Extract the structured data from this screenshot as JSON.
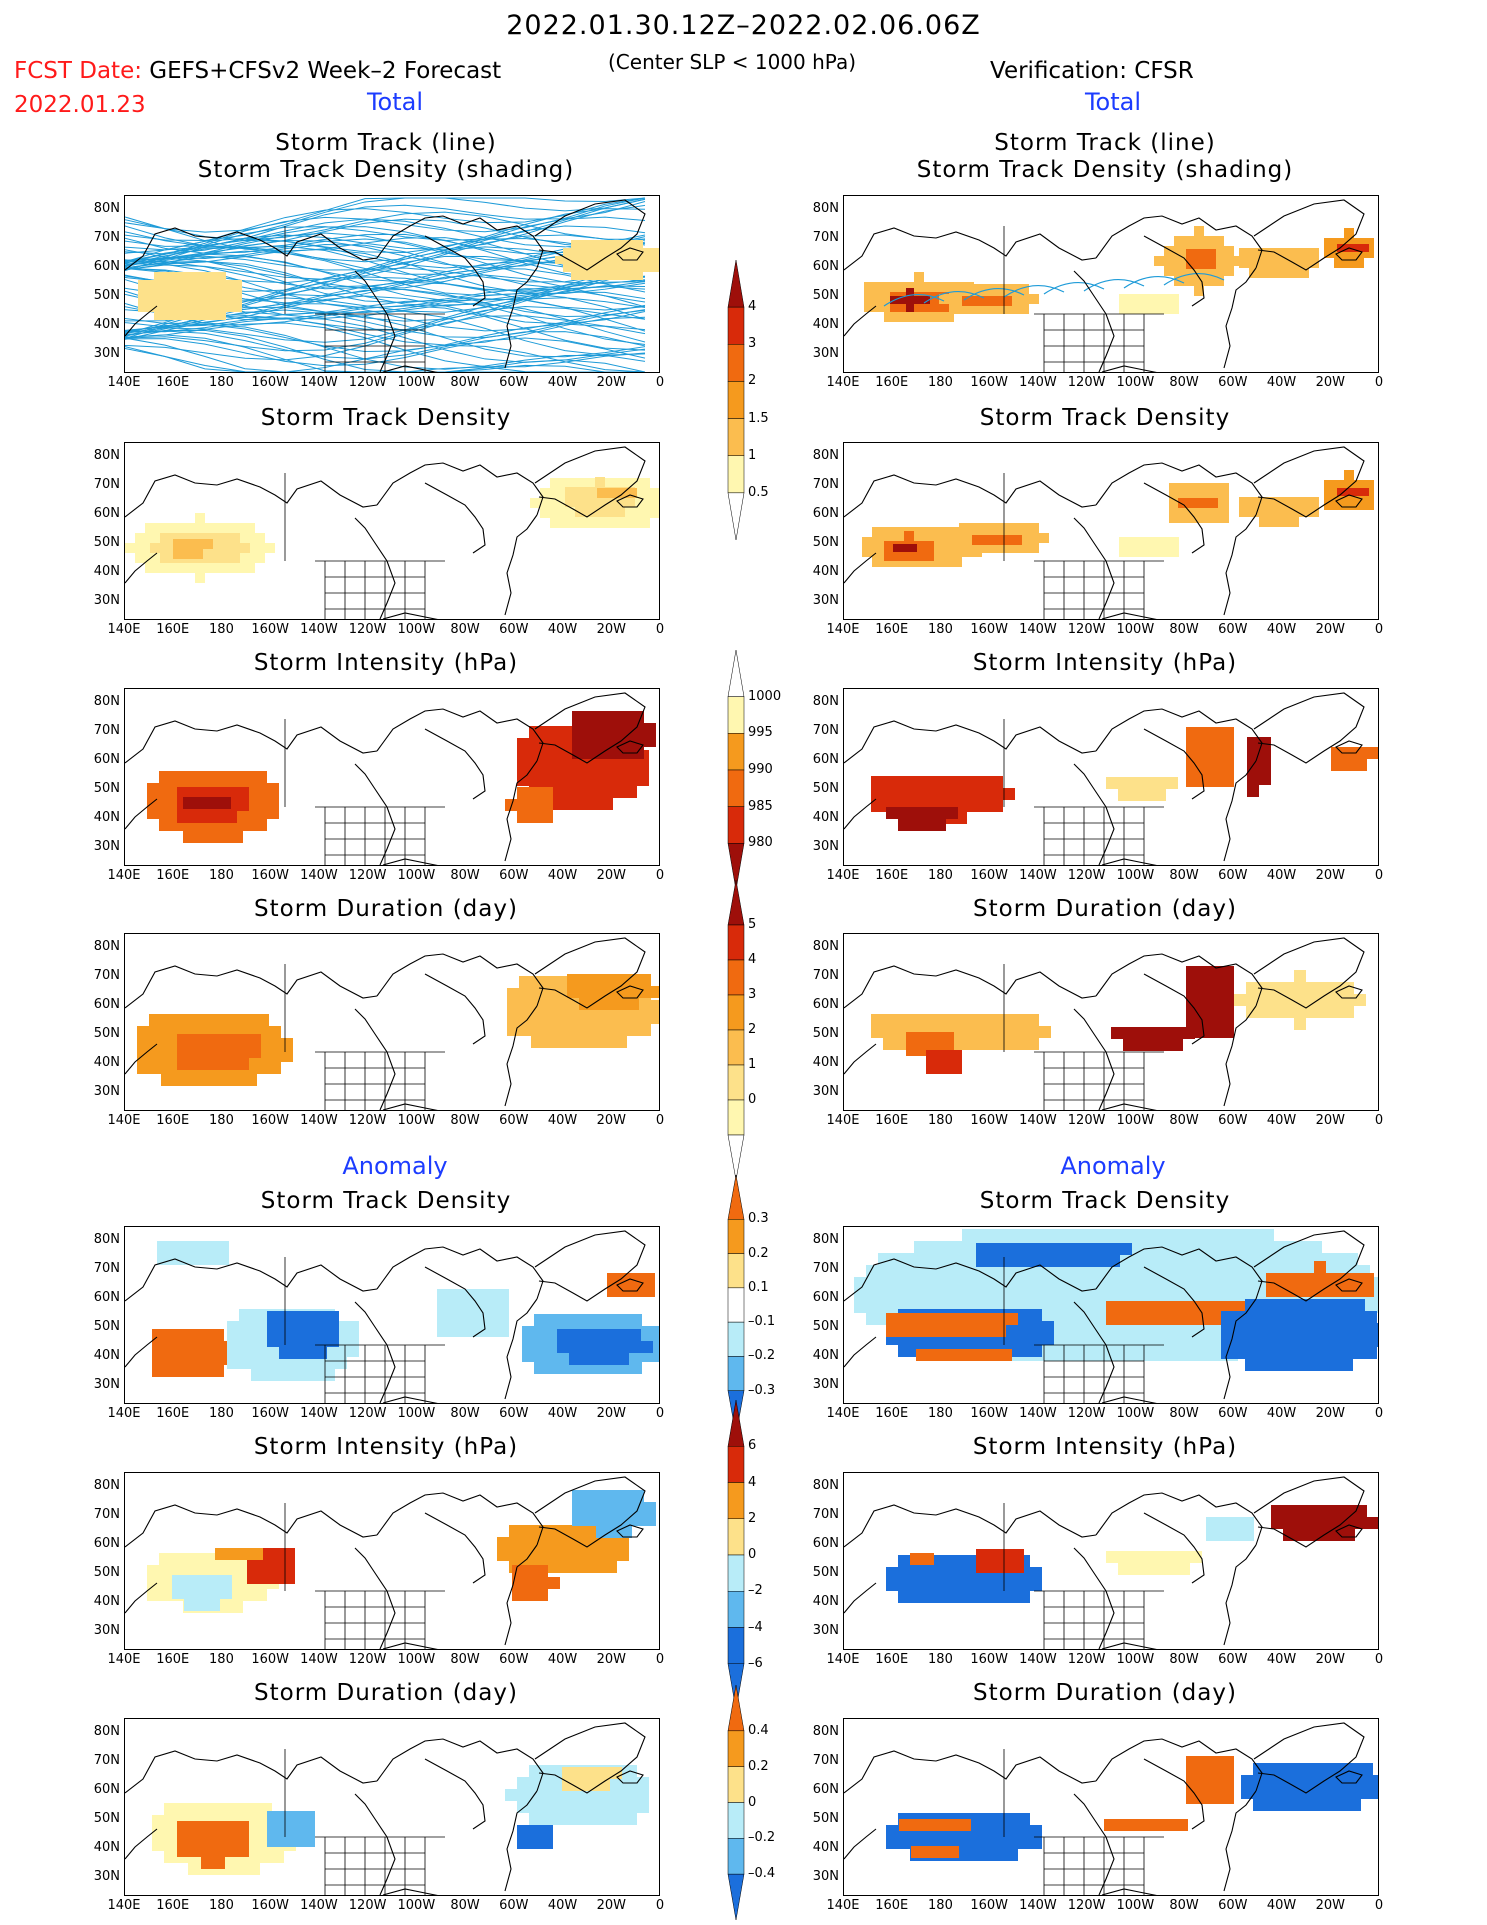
{
  "header": {
    "date_range": "2022.01.30.12Z–2022.02.06.06Z",
    "fcst_label": "FCST Date:",
    "forecast_name": "GEFS+CFSv2 Week–2 Forecast",
    "fcst_date": "2022.01.23",
    "subtitle": "(Center SLP < 1000 hPa)",
    "verification": "Verification: CFSR"
  },
  "sections": {
    "total_left": "Total",
    "total_right": "Total",
    "anomaly_left": "Anomaly",
    "anomaly_right": "Anomaly"
  },
  "panel_titles": {
    "track_line": "Storm Track (line)",
    "track_shading": "Storm Track Density (shading)",
    "density": "Storm Track Density",
    "intensity": "Storm Intensity (hPa)",
    "duration": "Storm Duration (day)"
  },
  "axes": {
    "lat_labels": [
      "80N",
      "70N",
      "60N",
      "50N",
      "40N",
      "30N"
    ],
    "lon_labels": [
      "140E",
      "160E",
      "180",
      "160W",
      "140W",
      "120W",
      "100W",
      "80W",
      "60W",
      "40W",
      "20W",
      "0"
    ]
  },
  "colorbars": {
    "density_total": [
      "4",
      "3",
      "2",
      "1.5",
      "1",
      "0.5"
    ],
    "intensity_total": [
      "1000",
      "995",
      "990",
      "985",
      "980"
    ],
    "duration_total": [
      "5",
      "4",
      "3",
      "2",
      "1",
      "0"
    ],
    "density_anom": [
      "0.3",
      "0.2",
      "0.1",
      "–0.1",
      "–0.2",
      "–0.3"
    ],
    "intensity_anom": [
      "6",
      "4",
      "2",
      "0",
      "–2",
      "–4",
      "–6"
    ],
    "duration_anom": [
      "0.4",
      "0.2",
      "0",
      "–0.2",
      "–0.4"
    ]
  },
  "colors": {
    "section_blue": "#1c3cff",
    "header_red": "#ff1a1a",
    "track_line": "#1e9bd8",
    "dens_1": "#fff7b0",
    "dens_2": "#fde18a",
    "dens_3": "#fbbd4f",
    "dens_4": "#f59a1e",
    "dens_5": "#f06a10",
    "dens_6": "#d82a0a",
    "dens_7": "#9e0f0a",
    "neg_1": "#b8ecf8",
    "neg_2": "#5fb8ee",
    "neg_3": "#1b6fdc"
  }
}
